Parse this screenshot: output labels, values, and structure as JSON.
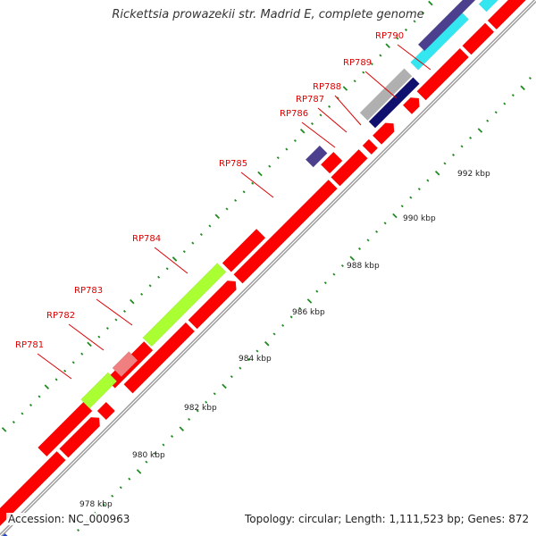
{
  "title": "Rickettsia prowazekii str. Madrid E, complete genome",
  "footer": {
    "accession": "Accession: NC_000963",
    "topology": "Topology: circular; Length: 1,111,523 bp; Genes: 872"
  },
  "colors": {
    "cds": "#ff0000",
    "trna": "#aaff33",
    "rrna": "#f08080",
    "misc": "#4b3f8e",
    "dark": "#10106e",
    "cyan": "#33e6f0",
    "gray": "#b0b0b0",
    "backbone": "#9a9a9a",
    "tick": "#228b22",
    "label": "#dd0000"
  },
  "gene_labels": [
    {
      "id": "rp781",
      "text": "RP781"
    },
    {
      "id": "rp782",
      "text": "RP782"
    },
    {
      "id": "rp783",
      "text": "RP783"
    },
    {
      "id": "rp784",
      "text": "RP784"
    },
    {
      "id": "rp785",
      "text": "RP785"
    },
    {
      "id": "rp786",
      "text": "RP786"
    },
    {
      "id": "rp787",
      "text": "RP787"
    },
    {
      "id": "rp788",
      "text": "RP788"
    },
    {
      "id": "rp789",
      "text": "RP789"
    },
    {
      "id": "rp790",
      "text": "RP790"
    }
  ],
  "scale_labels": [
    "978 kbp",
    "980 kbp",
    "982 kbp",
    "984 kbp",
    "986 kbp",
    "988 kbp",
    "990 kbp",
    "992 kbp"
  ]
}
